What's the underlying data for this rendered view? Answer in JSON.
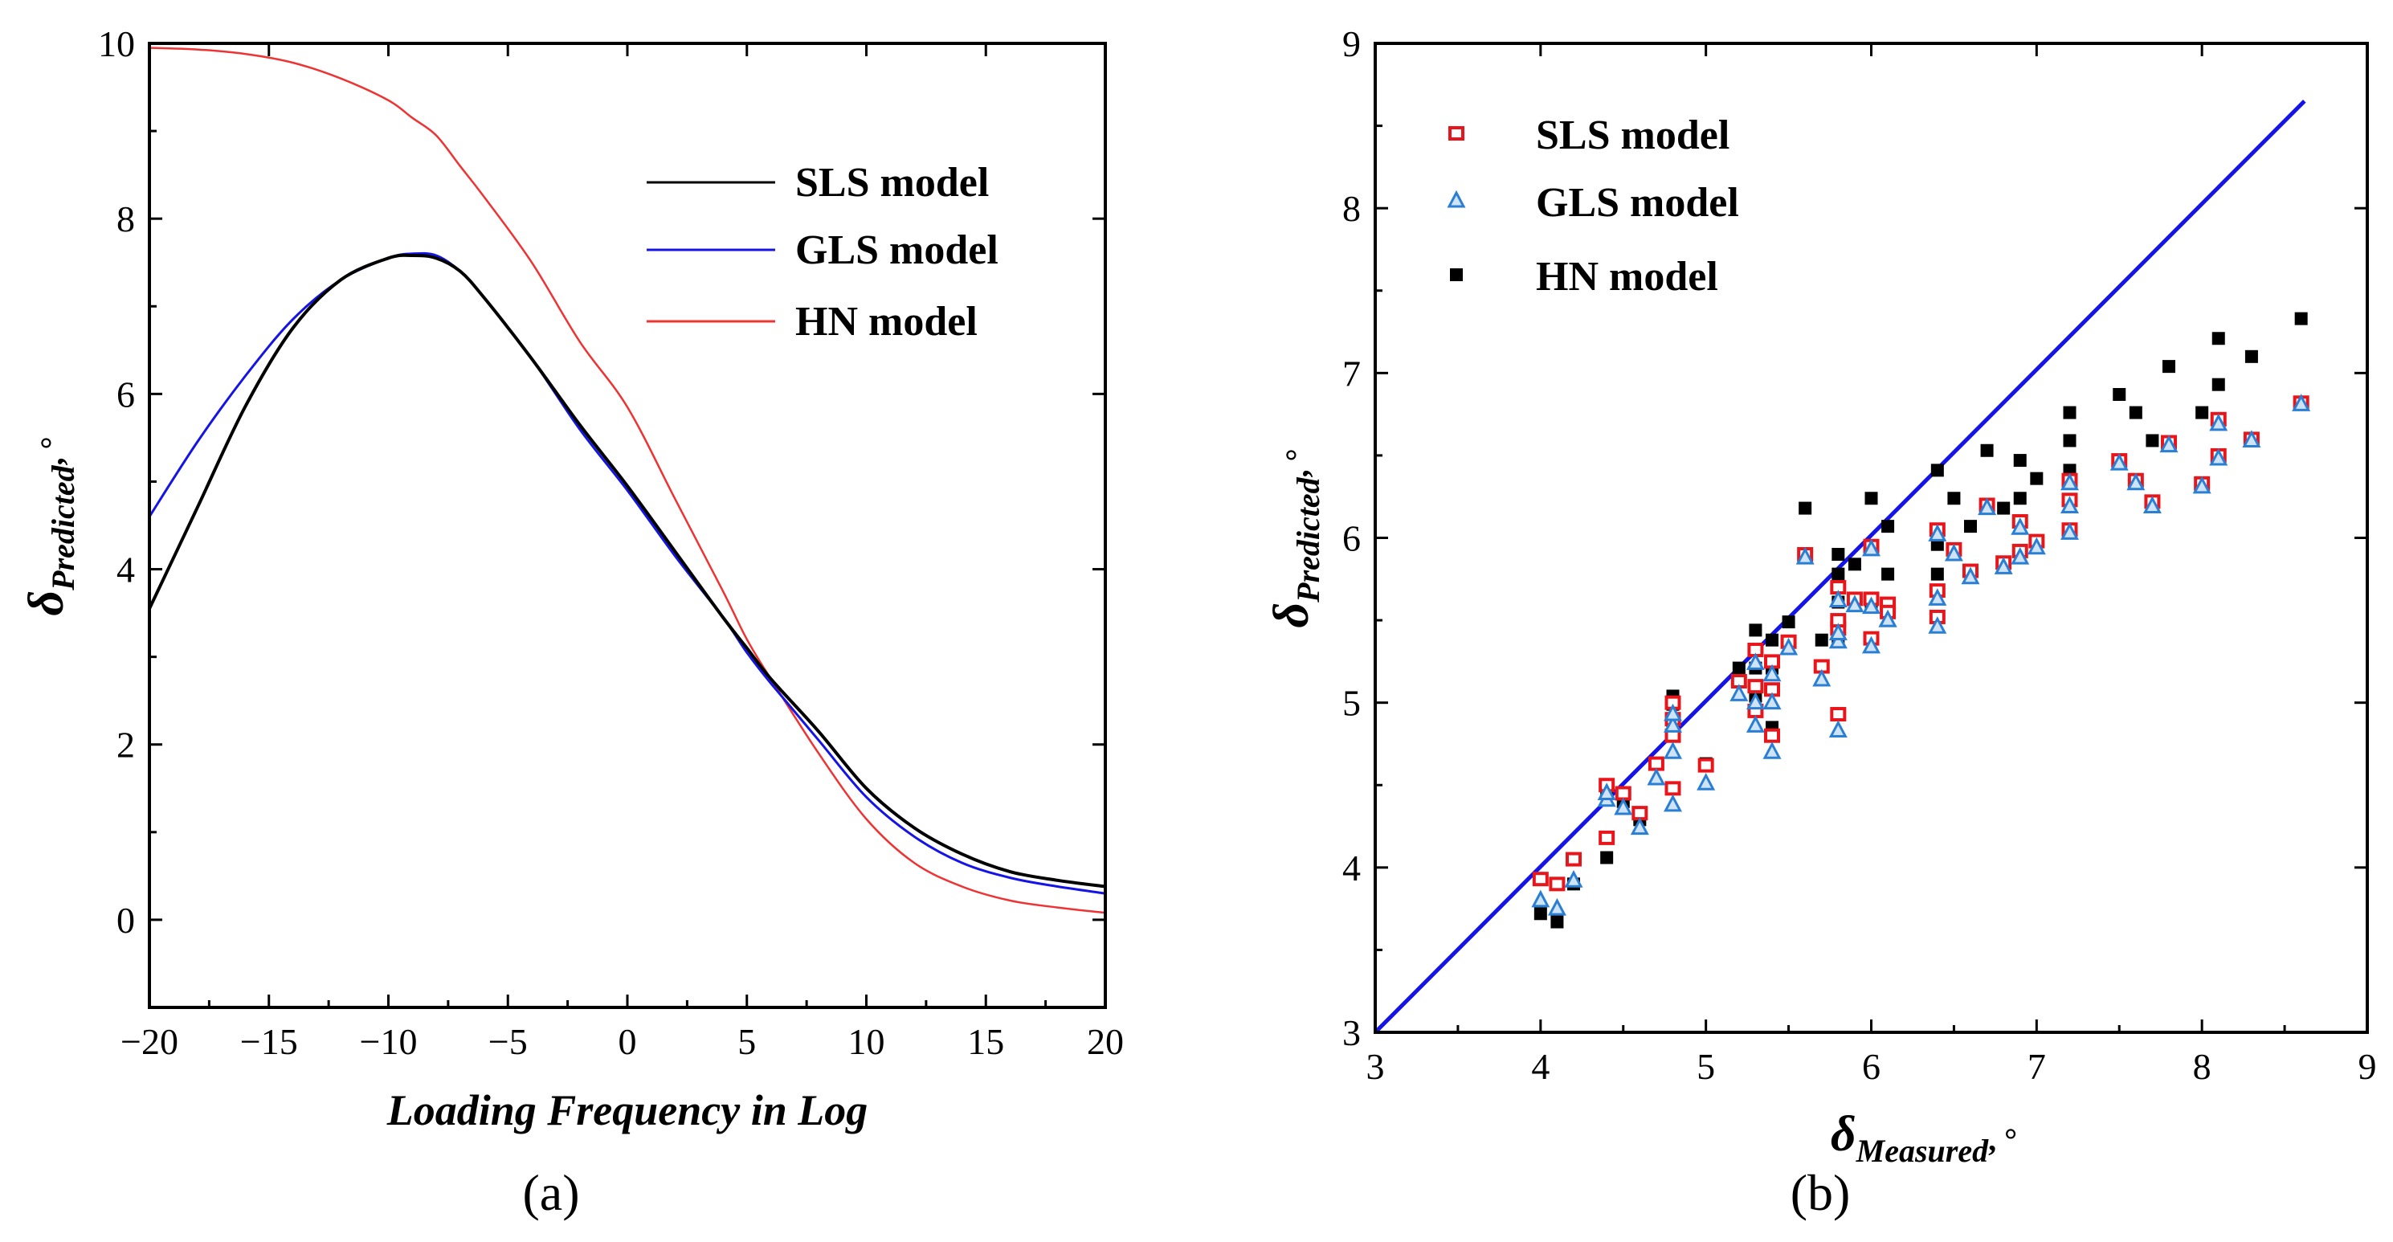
{
  "chart_data": [
    {
      "type": "line",
      "panel_label": "(a)",
      "xlabel": "Loading Frequency in Log",
      "ylabel": {
        "symbol": "δ",
        "subscript": "Predicted",
        "suffix": ", °"
      },
      "xlim": [
        -20,
        20
      ],
      "ylim": [
        -1,
        10
      ],
      "xticks": [
        -20,
        -15,
        -10,
        -5,
        0,
        5,
        10,
        15,
        20
      ],
      "xtick_labels": [
        "−20",
        "−15",
        "−10",
        "−5",
        "0",
        "5",
        "10",
        "15",
        "20"
      ],
      "yticks": [
        0,
        2,
        4,
        6,
        8,
        10
      ],
      "ytick_labels": [
        "0",
        "2",
        "4",
        "6",
        "8",
        "10"
      ],
      "legend": {
        "position": "top-right",
        "entries": [
          "SLS model",
          "GLS model",
          "HN model"
        ]
      },
      "x": [
        -20,
        -18,
        -16,
        -14,
        -12,
        -10,
        -9,
        -8,
        -7,
        -6,
        -4,
        -2,
        0,
        2,
        4,
        5,
        6,
        8,
        10,
        12,
        14,
        16,
        18,
        20
      ],
      "series": [
        {
          "name": "SLS model",
          "color": "#000000",
          "values": [
            3.55,
            4.7,
            5.85,
            6.75,
            7.3,
            7.55,
            7.58,
            7.55,
            7.4,
            7.1,
            6.4,
            5.65,
            4.95,
            4.2,
            3.45,
            3.1,
            2.75,
            2.15,
            1.5,
            1.05,
            0.75,
            0.55,
            0.45,
            0.38
          ]
        },
        {
          "name": "GLS model",
          "color": "#1414e6",
          "values": [
            4.6,
            5.45,
            6.2,
            6.85,
            7.3,
            7.55,
            7.6,
            7.58,
            7.4,
            7.1,
            6.4,
            5.6,
            4.9,
            4.15,
            3.45,
            3.05,
            2.7,
            2.05,
            1.4,
            0.95,
            0.65,
            0.48,
            0.38,
            0.3
          ]
        },
        {
          "name": "HN model",
          "color": "#ee3333",
          "values": [
            9.95,
            9.93,
            9.88,
            9.78,
            9.6,
            9.35,
            9.15,
            8.95,
            8.6,
            8.25,
            7.5,
            6.6,
            5.85,
            4.8,
            3.75,
            3.2,
            2.75,
            1.9,
            1.15,
            0.65,
            0.38,
            0.22,
            0.14,
            0.08
          ]
        }
      ]
    },
    {
      "type": "scatter",
      "panel_label": "(b)",
      "xlabel": {
        "symbol": "δ",
        "subscript": "Measured",
        "suffix": ", °"
      },
      "ylabel": {
        "symbol": "δ",
        "subscript": "Predicted",
        "suffix": ", °"
      },
      "xlim": [
        3,
        9
      ],
      "ylim": [
        3,
        9
      ],
      "xticks": [
        3,
        4,
        5,
        6,
        7,
        8,
        9
      ],
      "yticks": [
        3,
        4,
        5,
        6,
        7,
        8,
        9
      ],
      "legend": {
        "position": "top-left",
        "entries": [
          "SLS model",
          "GLS model",
          "HN model"
        ]
      },
      "reference_line": {
        "x": [
          3,
          8.62
        ],
        "y": [
          3,
          8.65
        ],
        "color": "#1414e6"
      },
      "x": [
        4.0,
        4.1,
        4.2,
        4.4,
        4.4,
        4.5,
        4.6,
        4.7,
        4.8,
        4.8,
        4.8,
        4.8,
        5.0,
        5.2,
        5.3,
        5.3,
        5.3,
        5.4,
        5.4,
        5.4,
        5.5,
        5.6,
        5.7,
        5.8,
        5.8,
        5.8,
        5.8,
        5.9,
        6.0,
        6.0,
        6.0,
        6.1,
        6.1,
        6.4,
        6.4,
        6.4,
        6.5,
        6.6,
        6.7,
        6.8,
        6.9,
        6.9,
        7.0,
        7.2,
        7.2,
        7.2,
        7.5,
        7.6,
        7.7,
        7.8,
        8.0,
        8.1,
        8.1,
        8.3,
        8.6
      ],
      "series": [
        {
          "name": "SLS model",
          "color": "#e8161b",
          "values": [
            3.93,
            3.9,
            4.05,
            4.18,
            4.5,
            4.45,
            4.33,
            4.63,
            4.48,
            4.8,
            4.9,
            5.0,
            4.62,
            5.13,
            4.95,
            5.1,
            5.32,
            4.8,
            5.08,
            5.25,
            5.37,
            5.9,
            5.22,
            4.93,
            5.45,
            5.5,
            5.7,
            5.63,
            5.39,
            5.63,
            5.95,
            5.6,
            5.55,
            5.52,
            5.68,
            6.05,
            5.93,
            5.8,
            6.2,
            5.85,
            5.92,
            6.1,
            5.98,
            6.05,
            6.23,
            6.35,
            6.47,
            6.35,
            6.22,
            6.58,
            6.33,
            6.5,
            6.72,
            6.6,
            6.82
          ]
        },
        {
          "name": "GLS model",
          "color": "#2a7fd4",
          "values": [
            3.8,
            3.75,
            3.92,
            4.41,
            4.45,
            4.36,
            4.24,
            4.54,
            4.38,
            4.7,
            4.86,
            4.93,
            4.51,
            5.05,
            4.86,
            5.0,
            5.24,
            4.7,
            5.0,
            5.17,
            5.33,
            5.88,
            5.14,
            4.83,
            5.37,
            5.42,
            5.62,
            5.59,
            5.34,
            5.58,
            5.93,
            5.5,
            5.5,
            5.46,
            5.63,
            6.02,
            5.9,
            5.76,
            6.18,
            5.82,
            5.88,
            6.06,
            5.94,
            6.03,
            6.19,
            6.33,
            6.45,
            6.33,
            6.19,
            6.56,
            6.31,
            6.48,
            6.69,
            6.59,
            6.81
          ]
        },
        {
          "name": "HN model",
          "color": "#000000",
          "values": [
            3.72,
            3.67,
            3.9,
            4.06,
            4.46,
            4.4,
            4.29,
            4.63,
            4.48,
            4.82,
            4.99,
            5.04,
            4.63,
            5.21,
            5.04,
            5.21,
            5.44,
            4.85,
            5.21,
            5.38,
            5.49,
            6.18,
            5.38,
            5.38,
            5.61,
            5.78,
            5.9,
            5.84,
            5.61,
            5.61,
            6.24,
            5.78,
            6.07,
            5.78,
            5.96,
            6.41,
            6.24,
            6.07,
            6.53,
            6.18,
            6.24,
            6.47,
            6.36,
            6.41,
            6.59,
            6.76,
            6.87,
            6.76,
            6.59,
            7.04,
            6.76,
            6.93,
            7.21,
            7.1,
            7.33
          ]
        }
      ]
    }
  ]
}
